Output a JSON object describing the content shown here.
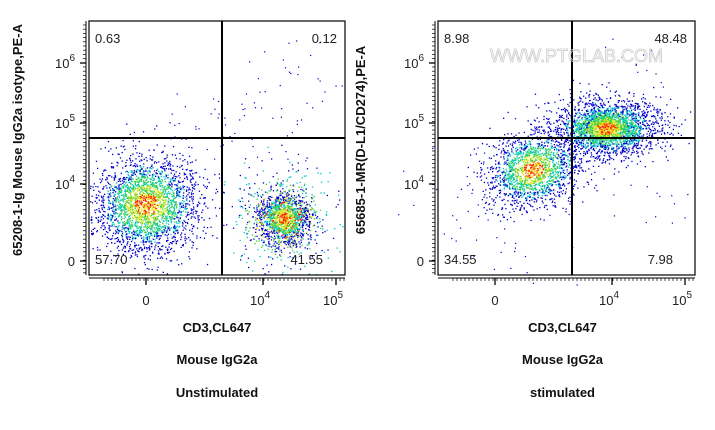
{
  "chart_data": [
    {
      "type": "scatter",
      "subtype": "flow-cytometry-density-dot-plot",
      "xlabel": "CD3,CL647",
      "ylabel": "65208-1-Ig Mouse IgG2a isotype,PE-A",
      "caption_lines": [
        "Mouse IgG2a",
        "Unstimulated"
      ],
      "x_ticks": [
        {
          "label": "0",
          "sup": ""
        },
        {
          "label": "10",
          "sup": "4"
        },
        {
          "label": "10",
          "sup": "5"
        }
      ],
      "y_ticks": [
        {
          "label": "0",
          "sup": ""
        },
        {
          "label": "10",
          "sup": "4"
        },
        {
          "label": "10",
          "sup": "5"
        },
        {
          "label": "10",
          "sup": "6"
        }
      ],
      "x_scale": "biexponential",
      "y_scale": "biexponential",
      "quadrants": {
        "upper_left": "0.63",
        "upper_right": "0.12",
        "lower_left": "57.70",
        "lower_right": "41.55"
      }
    },
    {
      "type": "scatter",
      "subtype": "flow-cytometry-density-dot-plot",
      "xlabel": "CD3,CL647",
      "ylabel": "65685-1-MR(D-L1/CD274),PE-A",
      "caption_lines": [
        "Mouse IgG2a",
        "stimulated"
      ],
      "x_ticks": [
        {
          "label": "0",
          "sup": ""
        },
        {
          "label": "10",
          "sup": "4"
        },
        {
          "label": "10",
          "sup": "5"
        }
      ],
      "y_ticks": [
        {
          "label": "0",
          "sup": ""
        },
        {
          "label": "10",
          "sup": "4"
        },
        {
          "label": "10",
          "sup": "5"
        },
        {
          "label": "10",
          "sup": "6"
        }
      ],
      "x_scale": "biexponential",
      "y_scale": "biexponential",
      "quadrants": {
        "upper_left": "8.98",
        "upper_right": "48.48",
        "lower_left": "34.55",
        "lower_right": "7.98"
      },
      "watermark": "WWW.PTGLAB.COM"
    }
  ],
  "density_colors": [
    "#0000c8",
    "#00c8c8",
    "#40d040",
    "#e8e820",
    "#ff2000"
  ]
}
